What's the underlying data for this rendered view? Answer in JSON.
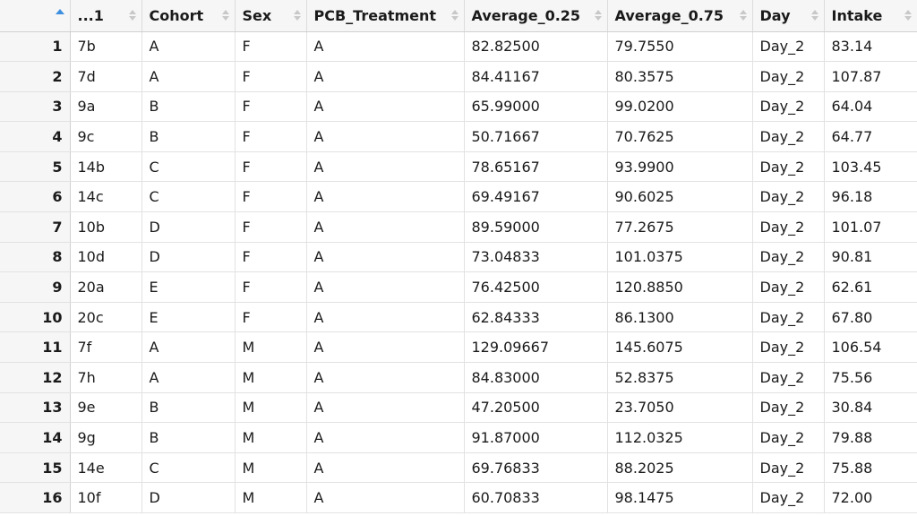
{
  "table": {
    "columns": [
      "...1",
      "Cohort",
      "Sex",
      "PCB_Treatment",
      "Average_0.25",
      "Average_0.75",
      "Day",
      "Intake"
    ],
    "rows": [
      {
        "n": "1",
        "cells": [
          "7b",
          "A",
          "F",
          "A",
          "82.82500",
          "79.7550",
          "Day_2",
          "83.14"
        ]
      },
      {
        "n": "2",
        "cells": [
          "7d",
          "A",
          "F",
          "A",
          "84.41167",
          "80.3575",
          "Day_2",
          "107.87"
        ]
      },
      {
        "n": "3",
        "cells": [
          "9a",
          "B",
          "F",
          "A",
          "65.99000",
          "99.0200",
          "Day_2",
          "64.04"
        ]
      },
      {
        "n": "4",
        "cells": [
          "9c",
          "B",
          "F",
          "A",
          "50.71667",
          "70.7625",
          "Day_2",
          "64.77"
        ]
      },
      {
        "n": "5",
        "cells": [
          "14b",
          "C",
          "F",
          "A",
          "78.65167",
          "93.9900",
          "Day_2",
          "103.45"
        ]
      },
      {
        "n": "6",
        "cells": [
          "14c",
          "C",
          "F",
          "A",
          "69.49167",
          "90.6025",
          "Day_2",
          "96.18"
        ]
      },
      {
        "n": "7",
        "cells": [
          "10b",
          "D",
          "F",
          "A",
          "89.59000",
          "77.2675",
          "Day_2",
          "101.07"
        ]
      },
      {
        "n": "8",
        "cells": [
          "10d",
          "D",
          "F",
          "A",
          "73.04833",
          "101.0375",
          "Day_2",
          "90.81"
        ]
      },
      {
        "n": "9",
        "cells": [
          "20a",
          "E",
          "F",
          "A",
          "76.42500",
          "120.8850",
          "Day_2",
          "62.61"
        ]
      },
      {
        "n": "10",
        "cells": [
          "20c",
          "E",
          "F",
          "A",
          "62.84333",
          "86.1300",
          "Day_2",
          "67.80"
        ]
      },
      {
        "n": "11",
        "cells": [
          "7f",
          "A",
          "M",
          "A",
          "129.09667",
          "145.6075",
          "Day_2",
          "106.54"
        ]
      },
      {
        "n": "12",
        "cells": [
          "7h",
          "A",
          "M",
          "A",
          "84.83000",
          "52.8375",
          "Day_2",
          "75.56"
        ]
      },
      {
        "n": "13",
        "cells": [
          "9e",
          "B",
          "M",
          "A",
          "47.20500",
          "23.7050",
          "Day_2",
          "30.84"
        ]
      },
      {
        "n": "14",
        "cells": [
          "9g",
          "B",
          "M",
          "A",
          "91.87000",
          "112.0325",
          "Day_2",
          "79.88"
        ]
      },
      {
        "n": "15",
        "cells": [
          "14e",
          "C",
          "M",
          "A",
          "69.76833",
          "88.2025",
          "Day_2",
          "75.88"
        ]
      },
      {
        "n": "16",
        "cells": [
          "10f",
          "D",
          "M",
          "A",
          "60.70833",
          "98.1475",
          "Day_2",
          "72.00"
        ]
      }
    ]
  },
  "colors": {
    "header_bg": "#f6f6f6",
    "sort_active": "#3d8fe0",
    "sort_inactive": "#c8c8c8",
    "grid_line": "#e2e2e2"
  },
  "icons": {
    "sort_active": "sort-ascending-icon",
    "sort_inactive": "sort-icon"
  }
}
